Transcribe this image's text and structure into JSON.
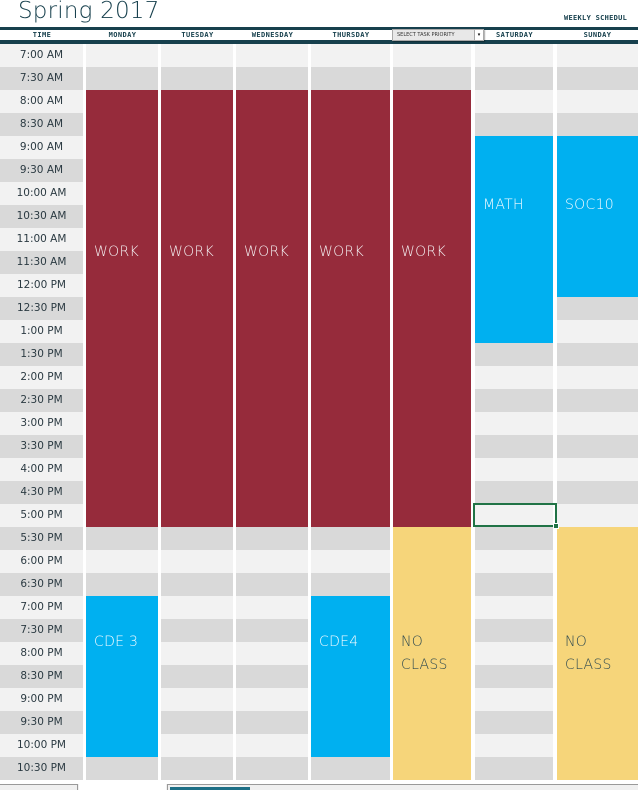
{
  "title": "Spring 2017",
  "subtitle": "WEEKLY SCHEDUL",
  "headers": {
    "time": "TIME",
    "days": [
      "MONDAY",
      "TUESDAY",
      "WEDNESDAY",
      "THURSDAY",
      "",
      "SATURDAY",
      "SUNDAY"
    ]
  },
  "priority_select": {
    "value": "SELECT TASK PRIORITY",
    "arrow": "▾"
  },
  "times": [
    "7:00 AM",
    "7:30 AM",
    "8:00 AM",
    "8:30 AM",
    "9:00 AM",
    "9:30 AM",
    "10:00 AM",
    "10:30 AM",
    "11:00 AM",
    "11:30 AM",
    "12:00 PM",
    "12:30 PM",
    "1:00 PM",
    "1:30 PM",
    "2:00 PM",
    "2:30 PM",
    "3:00 PM",
    "3:30 PM",
    "4:00 PM",
    "4:30 PM",
    "5:00 PM",
    "5:30 PM",
    "6:00 PM",
    "6:30 PM",
    "7:00 PM",
    "7:30 PM",
    "8:00 PM",
    "8:30 PM",
    "9:00 PM",
    "9:30 PM",
    "10:00 PM",
    "10:30 PM"
  ],
  "colors": {
    "work": "#962b3b",
    "class": "#00b0f0",
    "no_class": "#f6d57a",
    "header": "#17404d",
    "row_light": "#f2f2f2",
    "row_dark": "#d9d9d9",
    "selection": "#217346"
  },
  "events": [
    {
      "label": "WORK",
      "day": 0,
      "start": "8:00 AM",
      "end": "5:30 PM",
      "type": "work"
    },
    {
      "label": "WORK",
      "day": 1,
      "start": "8:00 AM",
      "end": "5:30 PM",
      "type": "work"
    },
    {
      "label": "WORK",
      "day": 2,
      "start": "8:00 AM",
      "end": "5:30 PM",
      "type": "work"
    },
    {
      "label": "WORK",
      "day": 3,
      "start": "8:00 AM",
      "end": "5:30 PM",
      "type": "work"
    },
    {
      "label": "WORK",
      "day": 4,
      "start": "8:00 AM",
      "end": "5:30 PM",
      "type": "work"
    },
    {
      "label": "MATH",
      "day": 5,
      "start": "9:00 AM",
      "end": "1:30 PM",
      "type": "class"
    },
    {
      "label": "SOC10",
      "day": 6,
      "start": "9:00 AM",
      "end": "12:30 PM",
      "type": "class"
    },
    {
      "label": "CDE 3",
      "day": 0,
      "start": "7:00 PM",
      "end": "10:30 PM",
      "type": "class"
    },
    {
      "label": "CDE4",
      "day": 3,
      "start": "7:00 PM",
      "end": "10:30 PM",
      "type": "class"
    },
    {
      "label": "NO\nCLASS",
      "day": 4,
      "start": "5:30 PM",
      "end": "11:00 PM",
      "type": "no_class"
    },
    {
      "label": "NO\nCLASS",
      "day": 6,
      "start": "5:30 PM",
      "end": "11:00 PM",
      "type": "no_class"
    }
  ],
  "selected_cell": {
    "day": "SATURDAY",
    "time": "5:00 PM"
  }
}
